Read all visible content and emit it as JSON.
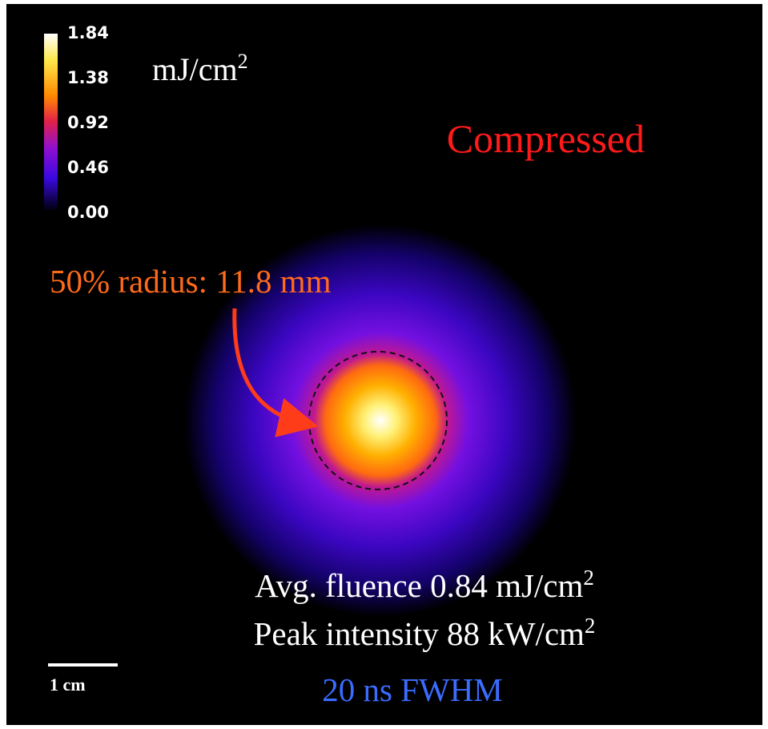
{
  "colorbar": {
    "ticks": [
      "1.84",
      "1.38",
      "0.92",
      "0.46",
      "0.00"
    ],
    "unit": "mJ/cm",
    "unit_exponent": "2"
  },
  "title": "Compressed",
  "radius_label": "50% radius: 11.8 mm",
  "fluence": {
    "text": "Avg. fluence 0.84 mJ/cm",
    "exponent": "2"
  },
  "intensity": {
    "text": "Peak intensity 88 kW/cm",
    "exponent": "2"
  },
  "pulse": "20 ns FWHM",
  "scale_bar": "1 cm"
}
